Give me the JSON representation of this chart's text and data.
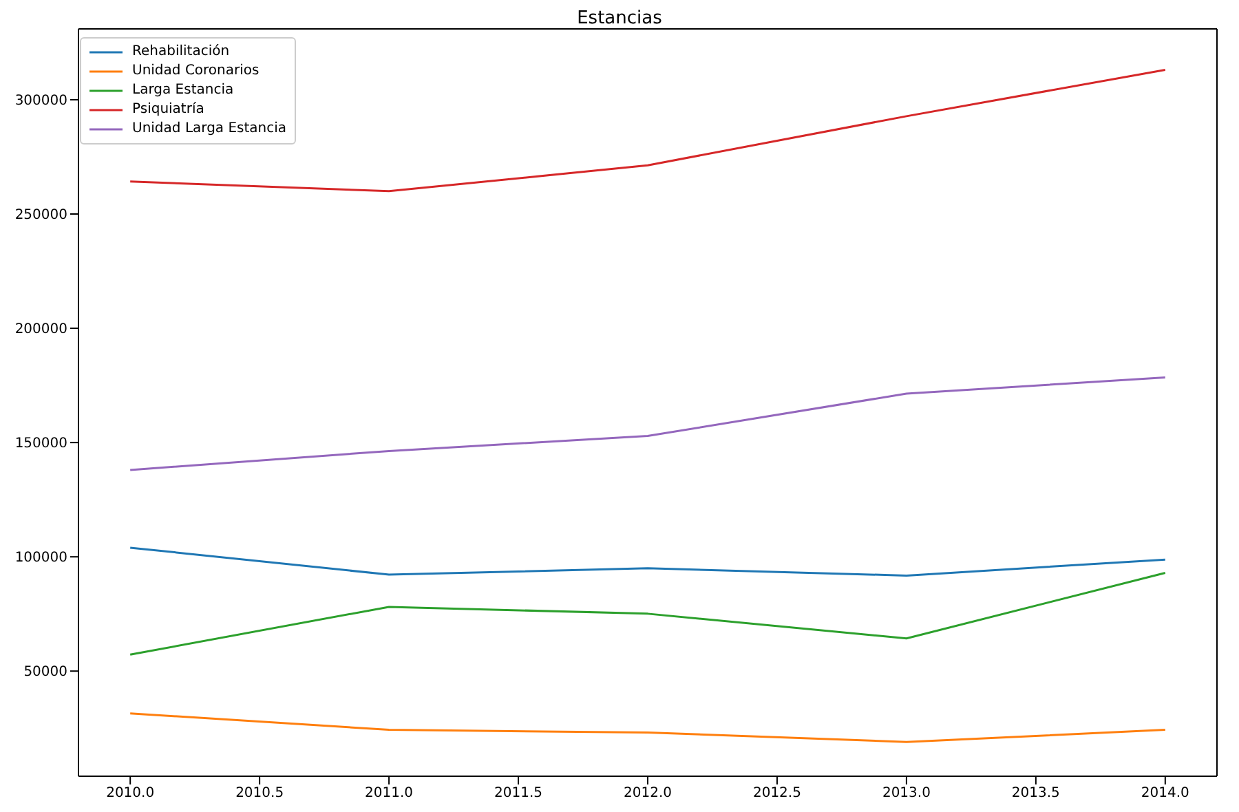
{
  "chart_data": {
    "type": "line",
    "title": "Estancias",
    "x": [
      2010,
      2011,
      2012,
      2013,
      2014
    ],
    "series": [
      {
        "name": "Rehabilitación",
        "color": "#1f77b4",
        "values": [
          104000,
          92200,
          95000,
          91800,
          98800
        ]
      },
      {
        "name": "Unidad Coronarios",
        "color": "#ff7f0e",
        "values": [
          31500,
          24300,
          23100,
          19000,
          24300
        ]
      },
      {
        "name": "Larga Estancia",
        "color": "#2ca02c",
        "values": [
          57200,
          78100,
          75100,
          64300,
          93000
        ]
      },
      {
        "name": "Psiquiatría",
        "color": "#d62728",
        "values": [
          264200,
          260000,
          271300,
          292800,
          313100
        ]
      },
      {
        "name": "Unidad Larga Estancia",
        "color": "#9467bd",
        "values": [
          138000,
          146300,
          152900,
          171400,
          178500
        ]
      }
    ],
    "xlim": [
      2009.8,
      2014.2
    ],
    "xticks": [
      {
        "value": 2010,
        "label": "2010.0"
      },
      {
        "value": 2010.5,
        "label": "2010.5"
      },
      {
        "value": 2011,
        "label": "2011.0"
      },
      {
        "value": 2011.5,
        "label": "2011.5"
      },
      {
        "value": 2012,
        "label": "2012.0"
      },
      {
        "value": 2012.5,
        "label": "2012.5"
      },
      {
        "value": 2013,
        "label": "2013.0"
      },
      {
        "value": 2013.5,
        "label": "2013.5"
      },
      {
        "value": 2014,
        "label": "2014.0"
      }
    ],
    "ylim": [
      4000,
      331000
    ],
    "yticks": [
      50000,
      100000,
      150000,
      200000,
      250000,
      300000
    ],
    "grid": false,
    "legend": "top left",
    "marker": "none",
    "line_style": "solid"
  }
}
